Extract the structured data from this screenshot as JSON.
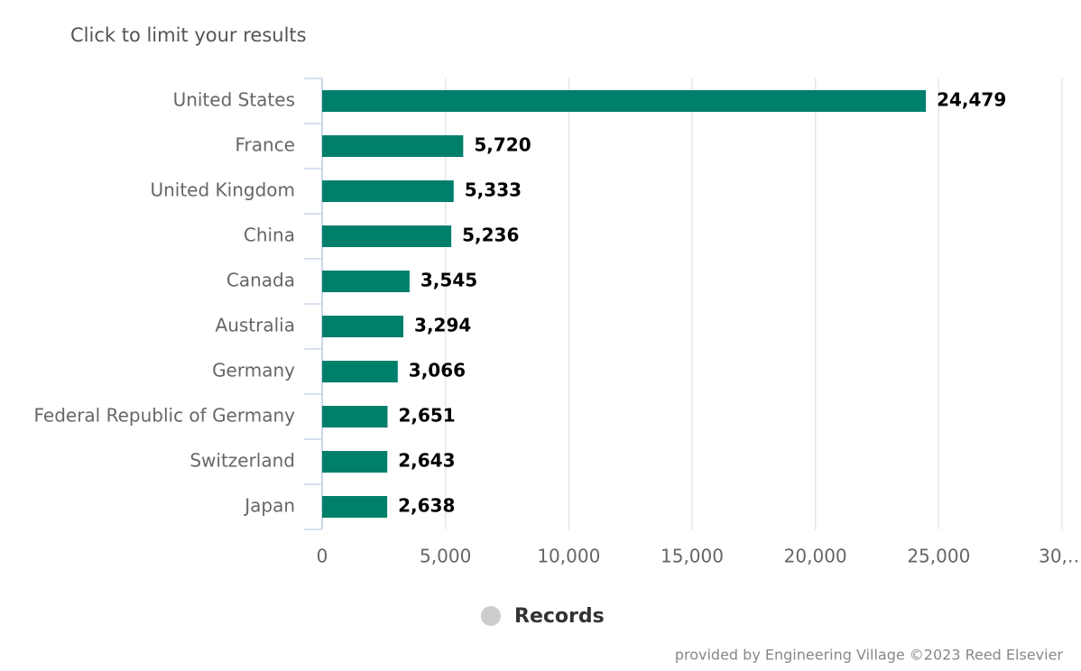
{
  "chart_data": {
    "type": "bar",
    "orientation": "horizontal",
    "subtitle": "Click to limit your results",
    "credits": "provided by Engineering Village ©2023 Reed Elsevier",
    "categories": [
      "United States",
      "France",
      "United Kingdom",
      "China",
      "Canada",
      "Australia",
      "Germany",
      "Federal Republic of Germany",
      "Switzerland",
      "Japan"
    ],
    "series": [
      {
        "name": "Records",
        "color": "#007f6b",
        "values": [
          24479,
          5720,
          5333,
          5236,
          3545,
          3294,
          3066,
          2651,
          2643,
          2638
        ],
        "value_labels": [
          "24,479",
          "5,720",
          "5,333",
          "5,236",
          "3,545",
          "3,294",
          "3,066",
          "2,651",
          "2,643",
          "2,638"
        ]
      }
    ],
    "xlim": [
      0,
      30000
    ],
    "xticks": [
      0,
      {
        "value": 5000,
        "label": "5,000"
      },
      {
        "value": 10000,
        "label": "10,000"
      },
      {
        "value": 15000,
        "label": "15,000"
      },
      {
        "value": 20000,
        "label": "20,000"
      },
      {
        "value": 25000,
        "label": "25,000"
      },
      {
        "value": 30000,
        "label": "30,…"
      }
    ],
    "grid": true,
    "legend": "bottom"
  }
}
